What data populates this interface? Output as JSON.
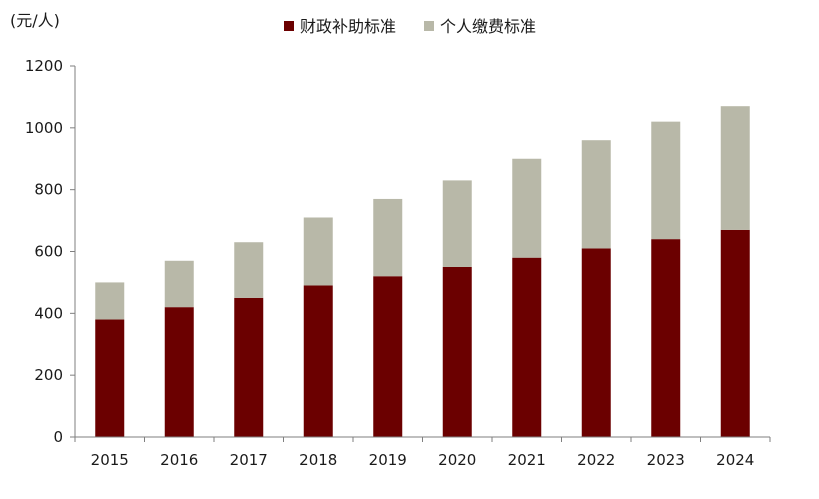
{
  "chart_data": {
    "type": "bar",
    "stacked": true,
    "ylabel": "(元/人)",
    "ylim": [
      0,
      1200
    ],
    "yticks": [
      0,
      200,
      400,
      600,
      800,
      1000,
      1200
    ],
    "categories": [
      "2015",
      "2016",
      "2017",
      "2018",
      "2019",
      "2020",
      "2021",
      "2022",
      "2023",
      "2024"
    ],
    "series": [
      {
        "name": "财政补助标准",
        "color": "#6b0000",
        "values": [
          380,
          420,
          450,
          490,
          520,
          550,
          580,
          610,
          640,
          670
        ]
      },
      {
        "name": "个人缴费标准",
        "color": "#b8b8a8",
        "values": [
          120,
          150,
          180,
          220,
          250,
          280,
          320,
          350,
          380,
          400
        ]
      }
    ],
    "legend_position": "top-center",
    "grid": false
  }
}
